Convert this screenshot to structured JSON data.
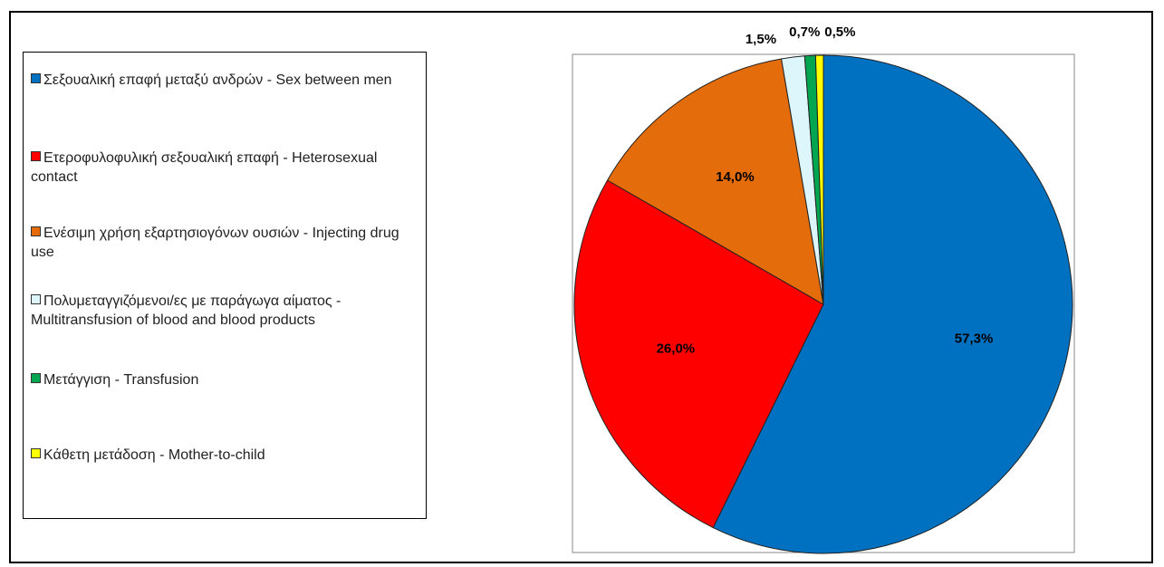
{
  "chart_data": {
    "type": "pie",
    "categories": [
      "Σεξουαλική επαφή μεταξύ ανδρών - Sex between men",
      "Ετεροφυλοφυλική σεξουαλική επαφή - Heterosexual contact",
      "Ενέσιμη χρήση εξαρτησιογόνων ουσιών - Injecting drug use",
      "Πολυμεταγγιζόμενοι/ες με παράγωγα αίματος - Multitransfusion of blood and blood products",
      "Μετάγγιση - Transfusion",
      "Κάθετη μετάδοση - Mother-to-child"
    ],
    "values": [
      57.3,
      26.0,
      14.0,
      1.5,
      0.7,
      0.5
    ],
    "value_labels": [
      "57,3%",
      "26,0%",
      "14,0%",
      "1,5%",
      "0,7%",
      "0,5%"
    ],
    "colors": [
      "#0070c0",
      "#ff0000",
      "#e46c0a",
      "#ddf6fb",
      "#00a650",
      "#ffff00"
    ]
  }
}
